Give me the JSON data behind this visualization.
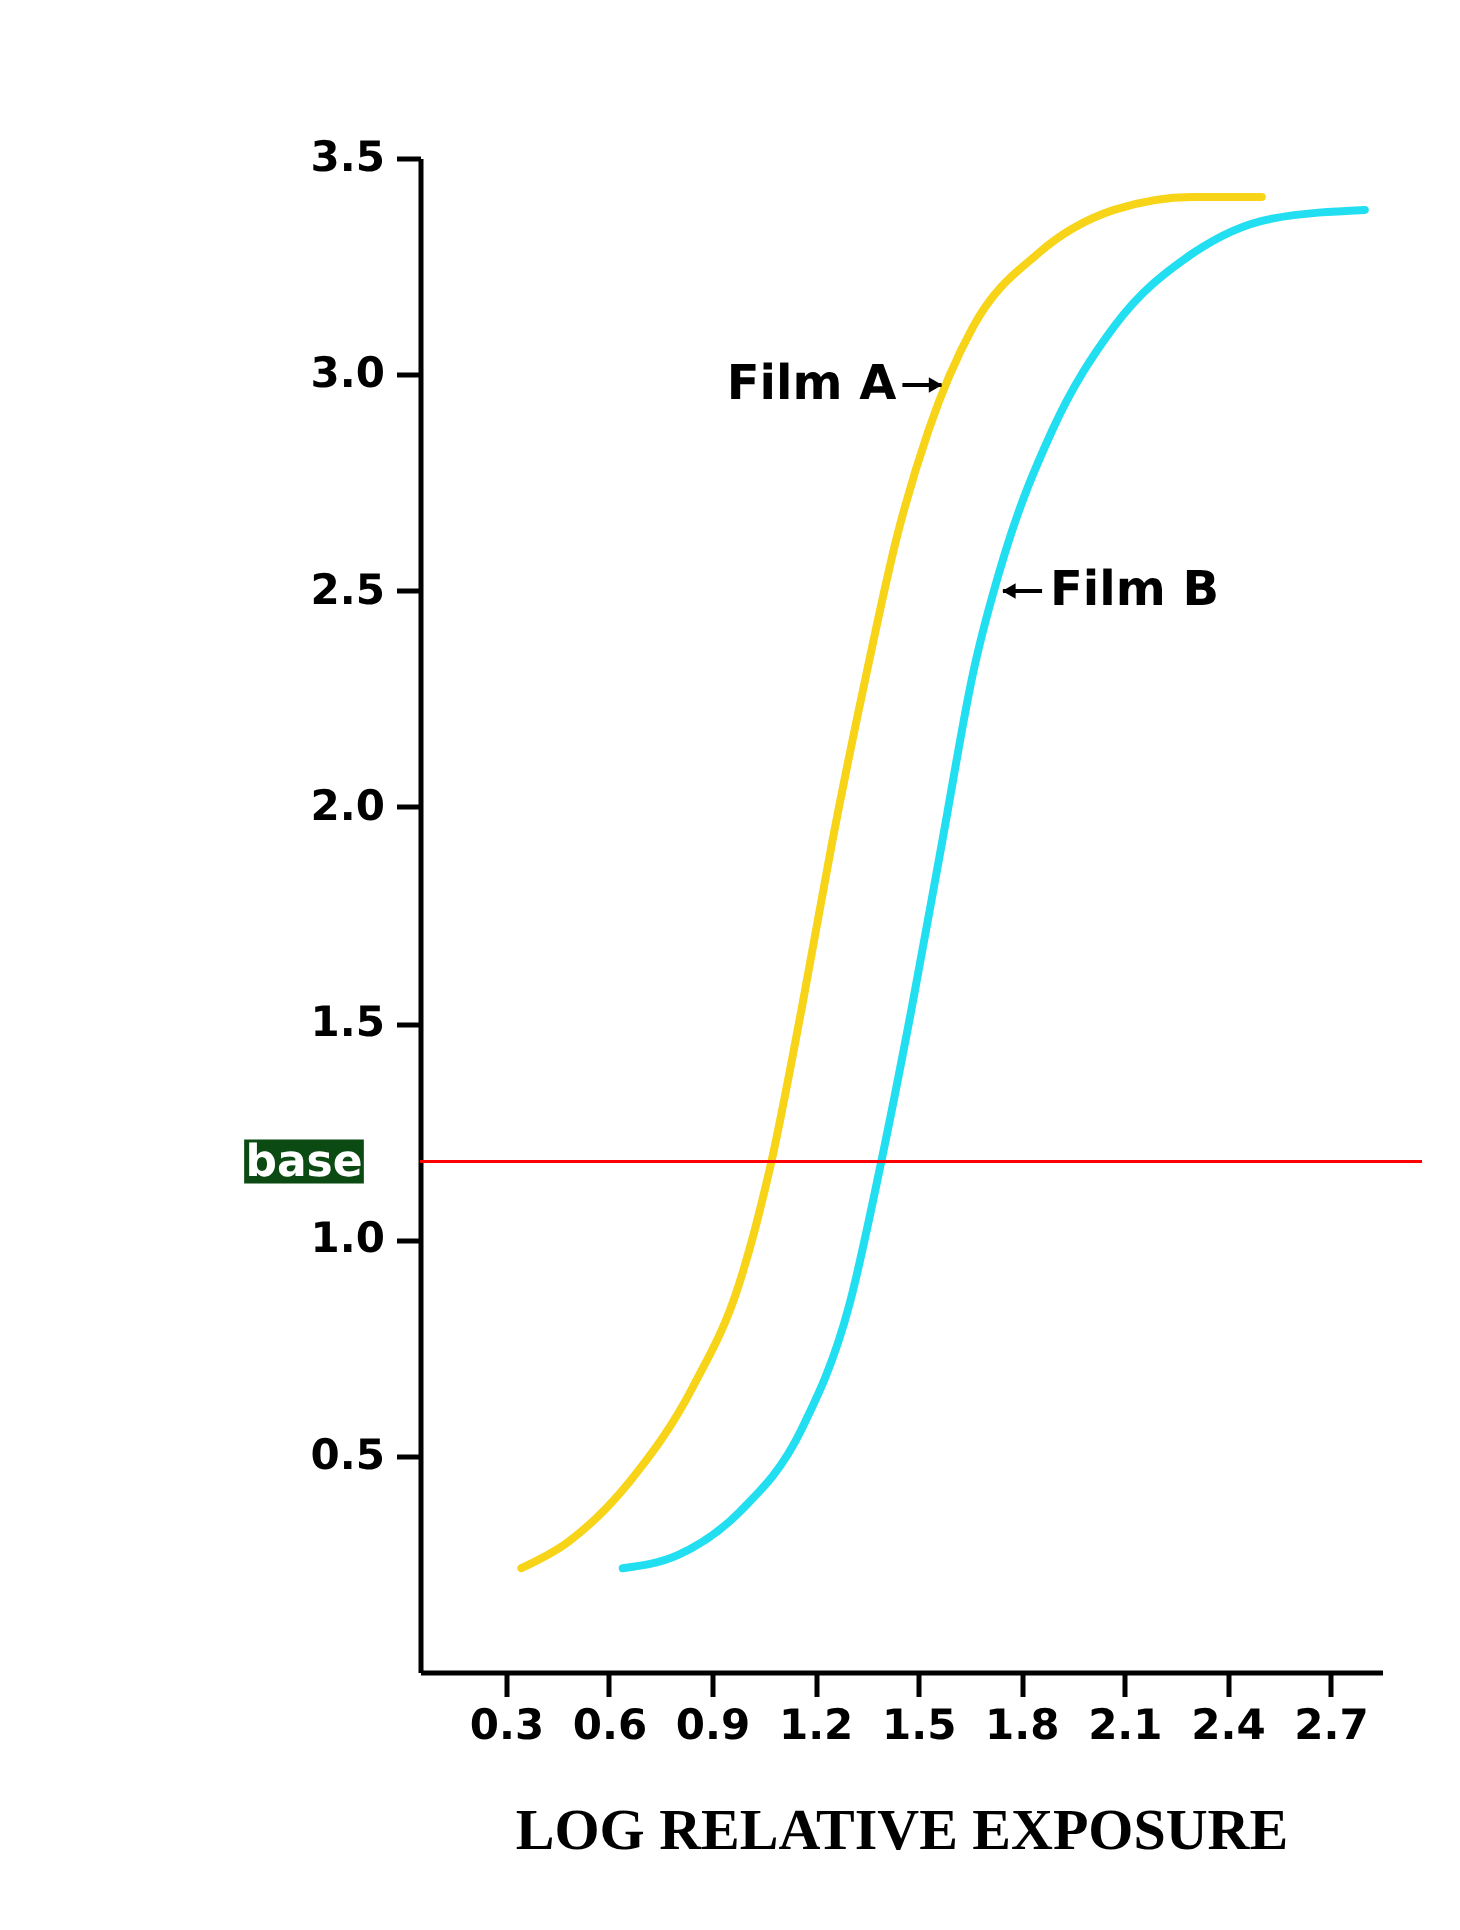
{
  "chart_data": {
    "type": "line",
    "xlabel": "LOG RELATIVE EXPOSURE",
    "xlim": [
      0.05,
      2.85
    ],
    "xticks": [
      0.3,
      0.6,
      0.9,
      1.2,
      1.5,
      1.8,
      2.1,
      2.4,
      2.7
    ],
    "ylim": [
      0,
      3.5
    ],
    "yticks": [
      0.5,
      {
        "value": 1,
        "label": "1.0"
      },
      1.5,
      {
        "value": 2,
        "label": "2.0"
      },
      2.5,
      {
        "value": 3,
        "label": "3.0"
      },
      3.5
    ],
    "grid": false,
    "legend": false,
    "series": [
      {
        "name": "Film A",
        "color": "#f7d417",
        "x": [
          0.345,
          0.48,
          0.66,
          0.845,
          0.98,
          1.07,
          1.16,
          1.25,
          1.35,
          1.44,
          1.53,
          1.66,
          1.85,
          2.07,
          2.3,
          2.5
        ],
        "values": [
          0.24,
          0.3,
          0.44,
          0.66,
          0.9,
          1.17,
          1.53,
          1.92,
          2.31,
          2.63,
          2.87,
          3.11,
          3.28,
          3.38,
          3.41,
          3.41
        ]
      },
      {
        "name": "Film B",
        "color": "#21dff0",
        "x": [
          0.64,
          0.8,
          0.98,
          1.16,
          1.3,
          1.39,
          1.48,
          1.57,
          1.66,
          1.75,
          1.89,
          2.07,
          2.3,
          2.53,
          2.8
        ],
        "values": [
          0.24,
          0.27,
          0.37,
          0.56,
          0.85,
          1.17,
          1.53,
          1.92,
          2.31,
          2.58,
          2.87,
          3.11,
          3.28,
          3.36,
          3.38
        ]
      }
    ],
    "ref_lines": [
      {
        "axis": "y",
        "value": 1.18,
        "label": "base",
        "color": "#ff0000"
      }
    ]
  }
}
